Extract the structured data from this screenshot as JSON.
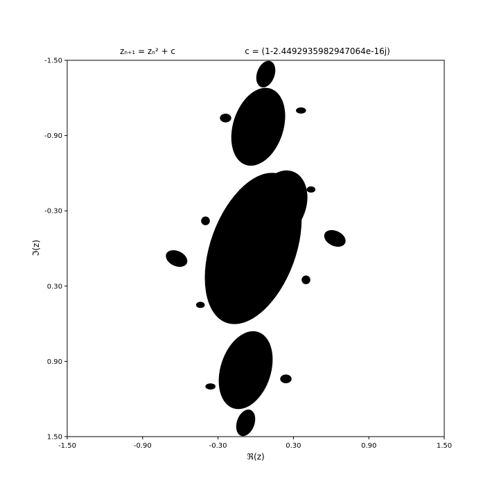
{
  "chart_data": {
    "type": "heatmap",
    "title_left": "zₙ₊₁ = zₙ² + c",
    "title_right": "c = (1-2.4492935982947064e-16j)",
    "xlabel": "ℜ(z)",
    "ylabel": "ℑ(z)",
    "xlim": [
      -1.5,
      1.5
    ],
    "ylim": [
      -1.5,
      1.5
    ],
    "y_inverted": true,
    "xticks": [
      -1.5,
      -0.9,
      -0.3,
      0.3,
      0.9,
      1.5
    ],
    "yticks": [
      -1.5,
      -0.9,
      -0.3,
      0.3,
      0.9,
      1.5
    ],
    "xtick_labels": [
      "-1.50",
      "-0.90",
      "-0.30",
      "0.30",
      "0.90",
      "1.50"
    ],
    "ytick_labels": [
      "-1.50",
      "-0.90",
      "-0.30",
      "0.30",
      "0.90",
      "1.50"
    ],
    "fill_color": "#000000",
    "background_color": "#ffffff",
    "grid": false,
    "components": [
      {
        "name": "top-bud",
        "cx": 0.08,
        "cy": -1.39,
        "rx": 0.07,
        "ry": 0.11,
        "rot": 20
      },
      {
        "name": "upper-lobe",
        "cx": 0.02,
        "cy": -0.97,
        "rx": 0.2,
        "ry": 0.32,
        "rot": 18
      },
      {
        "name": "upper-small-left",
        "cx": -0.24,
        "cy": -1.04,
        "rx": 0.045,
        "ry": 0.035,
        "rot": 0
      },
      {
        "name": "upper-small-right",
        "cx": 0.36,
        "cy": -1.1,
        "rx": 0.04,
        "ry": 0.025,
        "rot": 0
      },
      {
        "name": "main-body",
        "cx": -0.02,
        "cy": 0.0,
        "rx": 0.34,
        "ry": 0.63,
        "rot": 20
      },
      {
        "name": "main-top-lump",
        "cx": 0.2,
        "cy": -0.35,
        "rx": 0.2,
        "ry": 0.28,
        "rot": 20
      },
      {
        "name": "left-bud",
        "cx": -0.63,
        "cy": 0.08,
        "rx": 0.09,
        "ry": 0.06,
        "rot": 25
      },
      {
        "name": "right-bud",
        "cx": 0.63,
        "cy": -0.08,
        "rx": 0.09,
        "ry": 0.06,
        "rot": 25
      },
      {
        "name": "small-mid-left",
        "cx": -0.4,
        "cy": -0.22,
        "rx": 0.035,
        "ry": 0.035,
        "rot": 0
      },
      {
        "name": "small-mid-right",
        "cx": 0.44,
        "cy": -0.47,
        "rx": 0.035,
        "ry": 0.025,
        "rot": 0
      },
      {
        "name": "small-lower-right",
        "cx": 0.4,
        "cy": 0.25,
        "rx": 0.035,
        "ry": 0.035,
        "rot": 0
      },
      {
        "name": "small-lower-left",
        "cx": -0.44,
        "cy": 0.45,
        "rx": 0.035,
        "ry": 0.025,
        "rot": 0
      },
      {
        "name": "lower-lobe",
        "cx": -0.08,
        "cy": 0.97,
        "rx": 0.2,
        "ry": 0.32,
        "rot": 18
      },
      {
        "name": "lower-small-left",
        "cx": -0.36,
        "cy": 1.1,
        "rx": 0.04,
        "ry": 0.025,
        "rot": 0
      },
      {
        "name": "lower-small-right",
        "cx": 0.24,
        "cy": 1.04,
        "rx": 0.045,
        "ry": 0.035,
        "rot": 0
      },
      {
        "name": "bottom-bud",
        "cx": -0.08,
        "cy": 1.39,
        "rx": 0.07,
        "ry": 0.11,
        "rot": 20
      }
    ]
  }
}
